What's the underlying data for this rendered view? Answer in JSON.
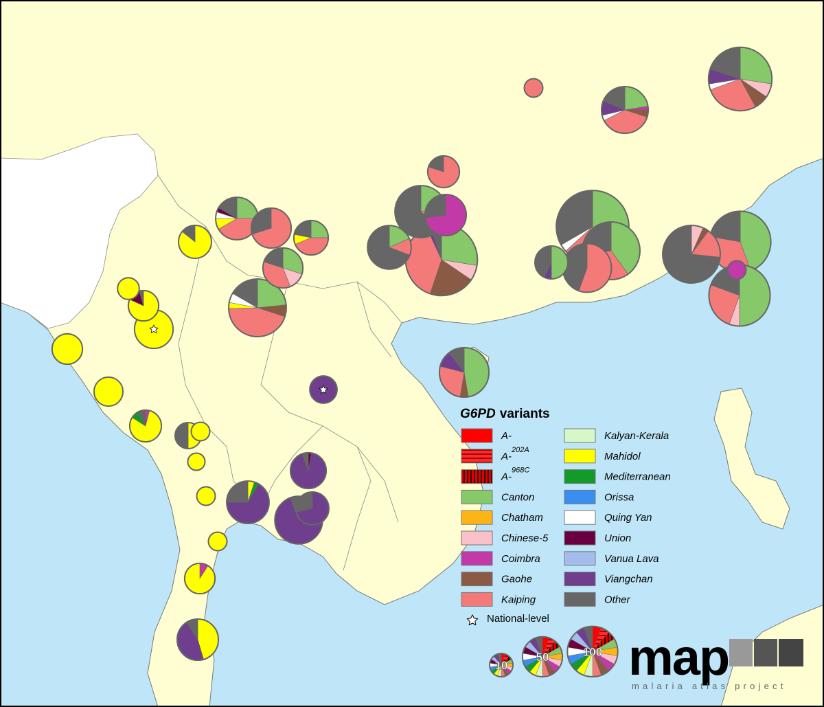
{
  "map": {
    "legend": {
      "title": {
        "gene": "G6PD",
        "text": "variants"
      },
      "variants": [
        {
          "name": "A-",
          "color": "#ff0000"
        },
        {
          "name": "A-",
          "sup": "202A",
          "color": "#e02020",
          "pattern": "horizontal"
        },
        {
          "name": "A-",
          "sup": "968C",
          "color": "#c00000",
          "pattern": "vertical"
        },
        {
          "name": "Canton",
          "color": "#86c86a"
        },
        {
          "name": "Chatham",
          "color": "#fdb515"
        },
        {
          "name": "Chinese-5",
          "color": "#fbc1c8"
        },
        {
          "name": "Coimbra",
          "color": "#c23aa8"
        },
        {
          "name": "Gaohe",
          "color": "#8b5a44"
        },
        {
          "name": "Kaiping",
          "color": "#f47a7a"
        },
        {
          "name": "Kalyan-Kerala",
          "color": "#d6f7c8"
        },
        {
          "name": "Mahidol",
          "color": "#ffff00"
        },
        {
          "name": "Mediterranean",
          "color": "#129a2a"
        },
        {
          "name": "Orissa",
          "color": "#3a8ef0"
        },
        {
          "name": "Quing Yan",
          "color": "#ffffff"
        },
        {
          "name": "Union",
          "color": "#6b0040"
        },
        {
          "name": "Vanua Lava",
          "color": "#a3bcec"
        },
        {
          "name": "Viangchan",
          "color": "#6f3f8e"
        },
        {
          "name": "Other",
          "color": "#666666"
        }
      ],
      "national_label": "National-level",
      "sizes": [
        10,
        50,
        100
      ]
    },
    "logo": {
      "text": "map",
      "tagline": "malaria atlas project"
    },
    "sites": [
      {
        "values": [
          0,
          0,
          0,
          0,
          0,
          0,
          0,
          0,
          5,
          0,
          0,
          0,
          0,
          0,
          0,
          0,
          0,
          0
        ]
      },
      {
        "values": [
          0,
          0,
          0,
          55,
          0,
          14,
          0,
          15,
          55,
          0,
          0,
          0,
          0,
          6,
          0,
          0,
          15,
          40
        ]
      },
      {
        "values": [
          0,
          0,
          0,
          18,
          0,
          0,
          2,
          4,
          30,
          0,
          0,
          0,
          0,
          3,
          0,
          0,
          8,
          15
        ]
      },
      {
        "values": [
          0,
          0,
          0,
          0,
          0,
          0,
          0,
          0,
          20,
          0,
          0,
          0,
          0,
          0,
          0,
          0,
          0,
          5
        ]
      },
      {
        "values": [
          0,
          0,
          0,
          95,
          0,
          0,
          0,
          0,
          95,
          0,
          0,
          0,
          0,
          10,
          0,
          0,
          0,
          100
        ]
      },
      {
        "values": [
          0,
          0,
          0,
          60,
          0,
          0,
          0,
          0,
          50,
          0,
          0,
          0,
          0,
          0,
          0,
          0,
          5,
          35
        ]
      },
      {
        "values": [
          0,
          0,
          0,
          0,
          0,
          0,
          0,
          0,
          50,
          0,
          0,
          0,
          0,
          0,
          0,
          0,
          0,
          40
        ]
      },
      {
        "values": [
          0,
          0,
          0,
          0,
          0,
          10,
          0,
          5,
          25,
          0,
          0,
          0,
          0,
          0,
          0,
          0,
          0,
          110
        ]
      },
      {
        "values": [
          0,
          0,
          0,
          80,
          0,
          0,
          0,
          0,
          60,
          0,
          0,
          0,
          0,
          0,
          0,
          0,
          0,
          40
        ]
      },
      {
        "values": [
          0,
          0,
          0,
          90,
          0,
          10,
          0,
          0,
          45,
          0,
          0,
          0,
          0,
          0,
          0,
          0,
          0,
          35
        ]
      },
      {
        "values": [
          0,
          0,
          0,
          0,
          0,
          0,
          5,
          0,
          0,
          0,
          0,
          0,
          0,
          0,
          0,
          0,
          0,
          0
        ]
      },
      {
        "values": [
          0,
          0,
          0,
          14,
          0,
          0,
          0,
          0,
          0,
          0,
          0,
          0,
          0,
          0,
          0,
          0,
          2,
          12
        ]
      },
      {
        "values": [
          0,
          0,
          0,
          25,
          0,
          0,
          0,
          0,
          15,
          0,
          0,
          0,
          0,
          0,
          0,
          0,
          0,
          70
        ]
      },
      {
        "values": [
          0,
          0,
          0,
          0,
          0,
          0,
          40,
          0,
          0,
          0,
          0,
          0,
          0,
          0,
          0,
          0,
          0,
          15
        ]
      },
      {
        "values": [
          0,
          0,
          0,
          80,
          0,
          20,
          0,
          60,
          110,
          0,
          0,
          0,
          0,
          0,
          0,
          0,
          5,
          15
        ]
      },
      {
        "values": [
          0,
          0,
          0,
          12,
          0,
          0,
          0,
          0,
          8,
          0,
          0,
          0,
          0,
          0,
          0,
          0,
          0,
          45
        ]
      },
      {
        "values": [
          0,
          0,
          0,
          15,
          0,
          0,
          0,
          0,
          25,
          0,
          5,
          0,
          0,
          3,
          2,
          0,
          0,
          10
        ]
      },
      {
        "values": [
          0,
          0,
          0,
          0,
          0,
          0,
          0,
          0,
          35,
          0,
          0,
          0,
          0,
          0,
          0,
          0,
          0,
          15
        ]
      },
      {
        "values": [
          0,
          0,
          0,
          8,
          0,
          0,
          0,
          0,
          14,
          0,
          3,
          0,
          0,
          0,
          0,
          0,
          0,
          7
        ]
      },
      {
        "values": [
          0,
          0,
          0,
          15,
          0,
          7,
          0,
          0,
          18,
          0,
          0,
          0,
          0,
          0,
          0,
          0,
          0,
          10
        ]
      },
      {
        "values": [
          0,
          0,
          0,
          35,
          0,
          0,
          0,
          10,
          67,
          0,
          5,
          0,
          0,
          8,
          0,
          0,
          0,
          25
        ]
      },
      {
        "values": [
          0,
          0,
          0,
          0,
          0,
          0,
          0,
          0,
          0,
          0,
          24,
          0,
          0,
          0,
          0,
          0,
          0,
          4
        ]
      },
      {
        "values": [
          0,
          0,
          0,
          45,
          0,
          0,
          0,
          5,
          25,
          0,
          0,
          0,
          0,
          0,
          0,
          0,
          10,
          10
        ]
      },
      {
        "values": [
          0,
          0,
          0,
          0,
          0,
          0,
          0,
          0,
          0,
          0,
          8,
          0,
          0,
          0,
          0,
          0,
          0,
          0
        ]
      },
      {
        "values": [
          0,
          0,
          0,
          0,
          0,
          0,
          0,
          0,
          0,
          0,
          18,
          0,
          0,
          0,
          3,
          0,
          0,
          1
        ]
      },
      {
        "values": [
          0,
          0,
          0,
          0,
          0,
          0,
          0,
          0,
          0,
          0,
          45,
          0,
          0,
          0,
          0,
          0,
          0,
          0
        ],
        "national": true
      },
      {
        "values": [
          0,
          0,
          0,
          0,
          0,
          0,
          0,
          0,
          0,
          0,
          22,
          0,
          0,
          0,
          0,
          0,
          0,
          0
        ]
      },
      {
        "values": [
          0,
          0,
          0,
          0,
          0,
          0,
          0,
          0,
          0,
          0,
          19,
          0,
          0,
          0,
          0,
          0,
          0,
          0
        ]
      },
      {
        "values": [
          0,
          0,
          0,
          0,
          0,
          0,
          1,
          0,
          0,
          0,
          20,
          2,
          0,
          0,
          0,
          0,
          0,
          2
        ]
      },
      {
        "values": [
          0,
          0,
          0,
          0,
          0,
          0,
          0,
          0,
          0,
          0,
          7,
          0,
          0,
          0,
          0,
          0,
          0,
          7
        ]
      },
      {
        "values": [
          0,
          0,
          0,
          0,
          0,
          0,
          0,
          0,
          0,
          0,
          5,
          0,
          0,
          0,
          0,
          0,
          0,
          0
        ]
      },
      {
        "values": [
          0,
          0,
          0,
          0,
          0,
          0,
          0,
          0,
          0,
          0,
          4,
          0,
          0,
          0,
          0,
          0,
          0,
          0
        ]
      },
      {
        "values": [
          0,
          0,
          0,
          0,
          0,
          0,
          0,
          0,
          0,
          0,
          5,
          0,
          0,
          0,
          0,
          0,
          0,
          0
        ]
      },
      {
        "values": [
          0,
          0,
          0,
          0,
          0,
          0,
          0,
          0,
          0,
          0,
          5,
          0,
          0,
          0,
          0,
          0,
          0,
          0
        ]
      },
      {
        "values": [
          0,
          0,
          0,
          0,
          0,
          0,
          2,
          0,
          0,
          0,
          20,
          0,
          0,
          0,
          0,
          0,
          0,
          0
        ]
      },
      {
        "values": [
          0,
          0,
          0,
          0,
          0,
          0,
          0,
          0,
          0,
          0,
          25,
          0,
          0,
          0,
          0,
          0,
          25,
          5
        ]
      },
      {
        "values": [
          0,
          0,
          0,
          0,
          0,
          0,
          0,
          0,
          0,
          0,
          0,
          0,
          0,
          0,
          0,
          0,
          16,
          0
        ],
        "national": true
      },
      {
        "values": [
          0,
          0,
          0,
          0,
          0,
          0,
          0,
          0,
          0,
          0,
          0,
          0,
          0,
          0,
          1,
          0,
          33,
          2
        ]
      },
      {
        "values": [
          0,
          0,
          0,
          0,
          0,
          0,
          0,
          0,
          0,
          0,
          3,
          2,
          0,
          0,
          0,
          0,
          40,
          15
        ]
      },
      {
        "values": [
          0,
          0,
          0,
          0,
          0,
          0,
          0,
          0,
          0,
          0,
          0,
          0,
          0,
          0,
          0,
          0,
          80,
          5
        ]
      },
      {
        "values": [
          0,
          0,
          0,
          0,
          0,
          0,
          0,
          0,
          0,
          0,
          0,
          0,
          0,
          0,
          0,
          0,
          20,
          8
        ]
      }
    ]
  }
}
